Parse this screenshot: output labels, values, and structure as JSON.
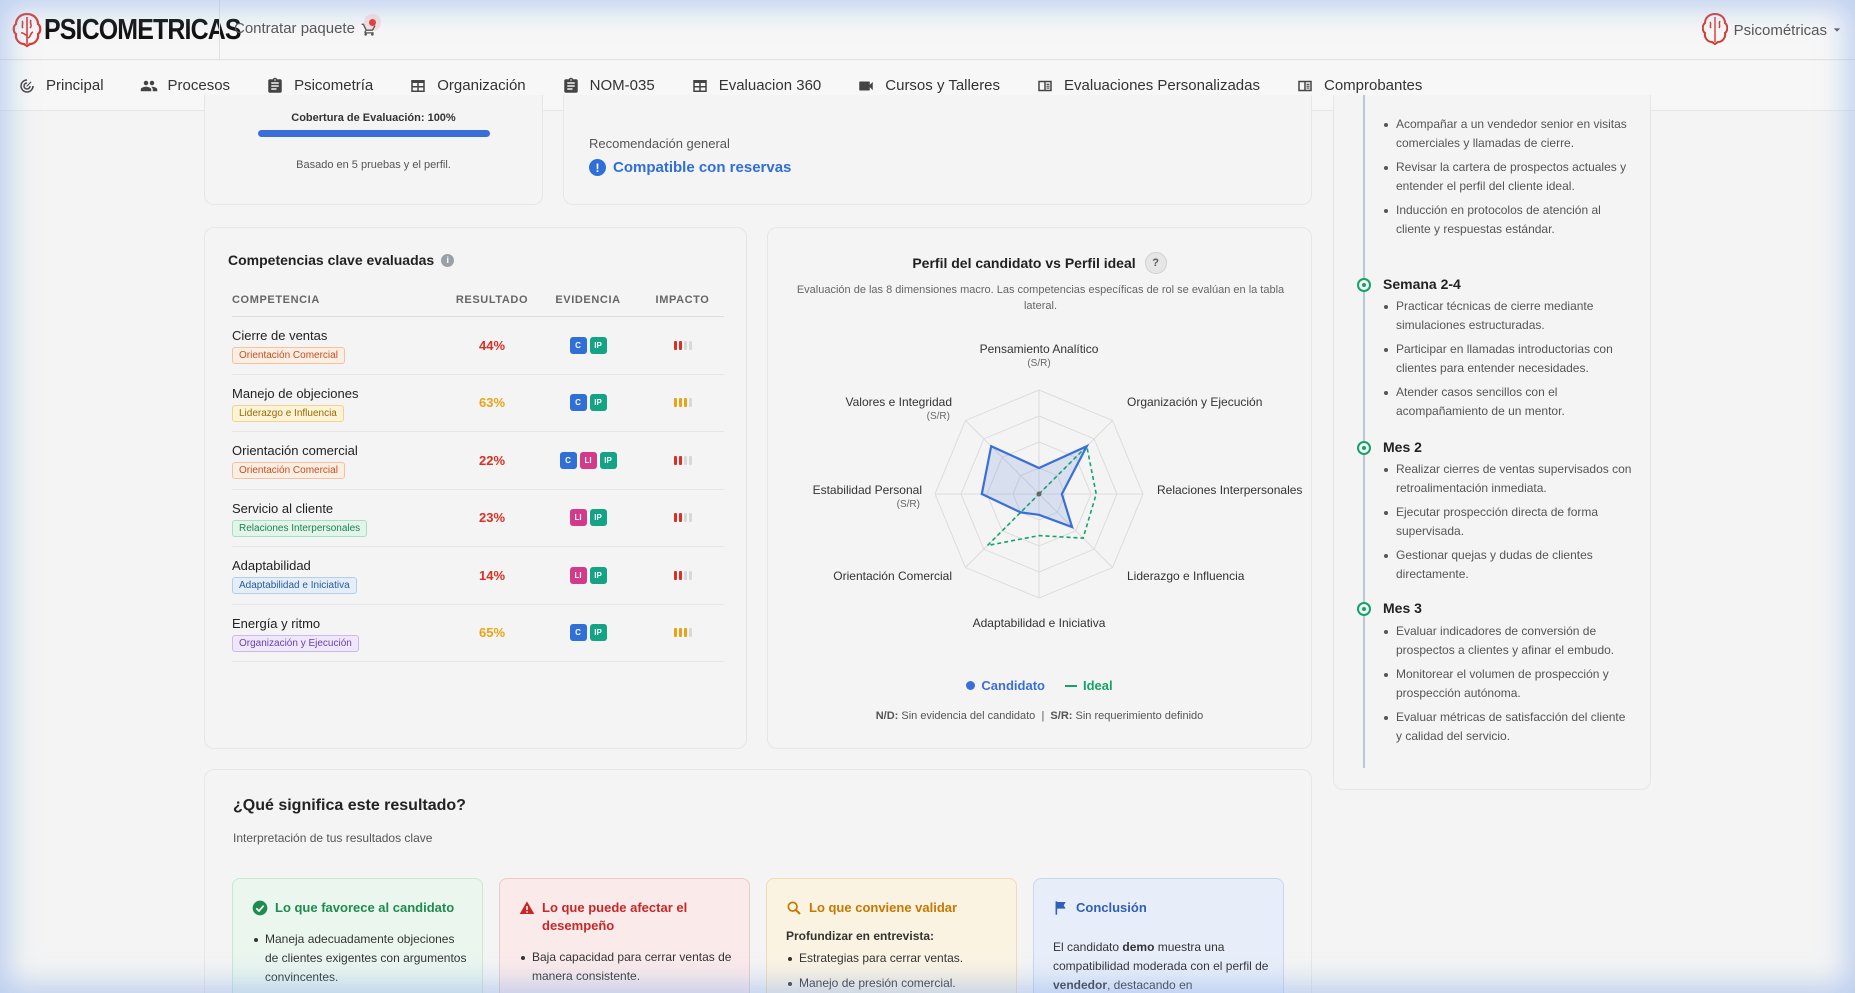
{
  "brand": {
    "name": "PSICOMETRICAS",
    "accent": "#d63a2f"
  },
  "header": {
    "contratar_label": "Contratar paquete",
    "user_label": "Psicométricas"
  },
  "nav": [
    {
      "label": "Principal",
      "icon": "clock-icon"
    },
    {
      "label": "Procesos",
      "icon": "people-icon"
    },
    {
      "label": "Psicometría",
      "icon": "clipboard-icon"
    },
    {
      "label": "Organización",
      "icon": "table-icon"
    },
    {
      "label": "NOM-035",
      "icon": "clipboard-icon"
    },
    {
      "label": "Evaluacion 360",
      "icon": "table-icon"
    },
    {
      "label": "Cursos y Talleres",
      "icon": "video-icon"
    },
    {
      "label": "Evaluaciones Personalizadas",
      "icon": "book-icon"
    },
    {
      "label": "Comprobantes",
      "icon": "book-icon"
    }
  ],
  "coverage": {
    "title": "Cobertura de Evaluación: 100%",
    "percent": 100,
    "note": "Basado en 5 pruebas y el perfil."
  },
  "recommendation": {
    "label": "Recomendación general",
    "value": "Compatible con reservas",
    "icon": "info-icon"
  },
  "competencies": {
    "title": "Competencias clave evaluadas",
    "headers": {
      "name": "COMPETENCIA",
      "result": "RESULTADO",
      "evidence": "EVIDENCIA",
      "impact": "IMPACTO"
    },
    "rows": [
      {
        "name": "Cierre de ventas",
        "tag": "Orientación Comercial",
        "tag_color": "orange",
        "result": "44%",
        "result_color": "#d93025",
        "evidence": [
          "C",
          "IP"
        ],
        "impact_level": 2,
        "impact_color": "#d93025"
      },
      {
        "name": "Manejo de objeciones",
        "tag": "Liderazgo e Influencia",
        "tag_color": "yellow",
        "result": "63%",
        "result_color": "#e8a317",
        "evidence": [
          "C",
          "IP"
        ],
        "impact_level": 3,
        "impact_color": "#e8a317"
      },
      {
        "name": "Orientación comercial",
        "tag": "Orientación Comercial",
        "tag_color": "orange",
        "result": "22%",
        "result_color": "#d93025",
        "evidence": [
          "C",
          "LI",
          "IP"
        ],
        "impact_level": 2,
        "impact_color": "#d93025"
      },
      {
        "name": "Servicio al cliente",
        "tag": "Relaciones Interpersonales",
        "tag_color": "green",
        "result": "23%",
        "result_color": "#d93025",
        "evidence": [
          "LI",
          "IP"
        ],
        "impact_level": 2,
        "impact_color": "#d93025"
      },
      {
        "name": "Adaptabilidad",
        "tag": "Adaptabilidad e Iniciativa",
        "tag_color": "blue",
        "result": "14%",
        "result_color": "#d93025",
        "evidence": [
          "LI",
          "IP"
        ],
        "impact_level": 2,
        "impact_color": "#d93025"
      },
      {
        "name": "Energía y ritmo",
        "tag": "Organización y Ejecución",
        "tag_color": "purple",
        "result": "65%",
        "result_color": "#e8a317",
        "evidence": [
          "C",
          "IP"
        ],
        "impact_level": 3,
        "impact_color": "#e8a317"
      }
    ]
  },
  "radar": {
    "title": "Perfil del candidato vs Perfil ideal",
    "help_label": "?",
    "subtitle": "Evaluación de las 8 dimensiones macro. Las competencias específicas de rol se evalúan en la tabla lateral.",
    "legend_candidate": "Candidato",
    "legend_ideal": "Ideal",
    "footnote_nd_key": "N/D:",
    "footnote_nd_text": "Sin evidencia del candidato",
    "footnote_sep": "|",
    "footnote_sr_key": "S/R:",
    "footnote_sr_text": "Sin requerimiento definido"
  },
  "chart_data": {
    "type": "radar",
    "title": "Perfil del candidato vs Perfil ideal",
    "axes": [
      "Pensamiento Analítico",
      "Organización y Ejecución",
      "Relaciones Interpersonales",
      "Liderazgo e Influencia",
      "Adaptabilidad e Iniciativa",
      "Orientación Comercial",
      "Estabilidad Personal",
      "Valores e Integridad"
    ],
    "axis_notes": [
      "(S/R)",
      "",
      "",
      "",
      "",
      "",
      "(S/R)",
      "(S/R)"
    ],
    "range": [
      0,
      100
    ],
    "series": [
      {
        "name": "Candidato",
        "color": "#3a6fd8",
        "values": [
          25,
          65,
          22,
          45,
          20,
          25,
          55,
          65
        ]
      },
      {
        "name": "Ideal",
        "color": "#15a36a",
        "values": [
          0,
          65,
          55,
          60,
          40,
          70,
          0,
          0
        ]
      }
    ]
  },
  "plan": {
    "intro_items": [
      "Acompañar a un vendedor senior en visitas comerciales y llamadas de cierre.",
      "Revisar la cartera de prospectos actuales y entender el perfil del cliente ideal.",
      "Inducción en protocolos de atención al cliente y respuestas estándar."
    ],
    "stages": [
      {
        "title": "Semana 2-4",
        "items": [
          "Practicar técnicas de cierre mediante simulaciones estructuradas.",
          "Participar en llamadas introductorias con clientes para entender necesidades.",
          "Atender casos sencillos con el acompañamiento de un mentor."
        ]
      },
      {
        "title": "Mes 2",
        "items": [
          "Realizar cierres de ventas supervisados con retroalimentación inmediata.",
          "Ejecutar prospección directa de forma supervisada.",
          "Gestionar quejas y dudas de clientes directamente."
        ]
      },
      {
        "title": "Mes 3",
        "items": [
          "Evaluar indicadores de conversión de prospectos a clientes y afinar el embudo.",
          "Monitorear el volumen de prospección y prospección autónoma.",
          "Evaluar métricas de satisfacción del cliente y calidad del servicio."
        ]
      }
    ]
  },
  "meaning": {
    "title": "¿Qué significa este resultado?",
    "subtitle": "Interpretación de tus resultados clave",
    "favor": {
      "title": "Lo que favorece al candidato",
      "color": "#1e8c4e",
      "items": [
        "Maneja adecuadamente objeciones de clientes exigentes con argumentos convincentes."
      ]
    },
    "affect": {
      "title": "Lo que puede afectar el desempeño",
      "color": "#c62828",
      "items": [
        "Baja capacidad para cerrar ventas de manera consistente."
      ]
    },
    "validate": {
      "title": "Lo que conviene validar",
      "color": "#c77800",
      "lead": "Profundizar en entrevista:",
      "items": [
        "Estrategias para cerrar ventas.",
        "Manejo de presión comercial."
      ]
    },
    "conclusion": {
      "title": "Conclusión",
      "color": "#2f5fb8",
      "text_1": "El candidato",
      "text_demo": "demo",
      "text_2": "muestra una compatibilidad moderada con el perfil de",
      "text_role": "vendedor",
      "text_3": ", destacando en"
    }
  }
}
